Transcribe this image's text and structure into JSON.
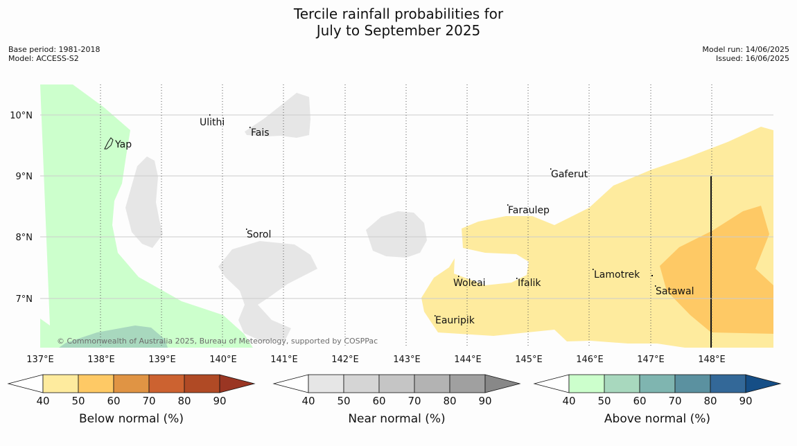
{
  "title_line1": "Tercile rainfall probabilities for",
  "title_line2": "July to September 2025",
  "meta_left": [
    "Base period: 1981-2018",
    "Model: ACCESS-S2"
  ],
  "meta_right": [
    "Model run: 14/06/2025",
    "Issued: 16/06/2025"
  ],
  "copyright": "© Commonwealth of Australia 2025, Bureau of Meteorology, supported by COSPPac",
  "longitude_labels": [
    "137°E",
    "138°E",
    "139°E",
    "140°E",
    "141°E",
    "142°E",
    "143°E",
    "144°E",
    "145°E",
    "146°E",
    "147°E",
    "148°E"
  ],
  "latitude_labels": [
    "10°N",
    "9°N",
    "8°N",
    "7°N"
  ],
  "places": [
    "Ulithi",
    "Fais",
    "Yap",
    "Gaferut",
    "Faraulep",
    "Sorol",
    "Lamotrek",
    "Woleai",
    "Ifalik",
    "Satawal",
    "Eauripik"
  ],
  "colorbars": [
    {
      "title": "Below normal (%)",
      "ticks": [
        "40",
        "50",
        "60",
        "70",
        "80",
        "90"
      ],
      "colors": [
        "#ffffff",
        "#feeb9e",
        "#fec965",
        "#e09444",
        "#cc6230",
        "#b04a25",
        "#9a3623"
      ]
    },
    {
      "title": "Near normal (%)",
      "ticks": [
        "40",
        "50",
        "60",
        "70",
        "80",
        "90"
      ],
      "colors": [
        "#ffffff",
        "#e6e6e6",
        "#d5d5d5",
        "#c5c5c5",
        "#b3b3b3",
        "#a0a0a0",
        "#888888"
      ]
    },
    {
      "title": "Above normal (%)",
      "ticks": [
        "40",
        "50",
        "60",
        "70",
        "80",
        "90"
      ],
      "colors": [
        "#ffffff",
        "#ccffcc",
        "#a8d8be",
        "#7fb5b0",
        "#5b91a0",
        "#336898",
        "#154e86"
      ]
    }
  ]
}
